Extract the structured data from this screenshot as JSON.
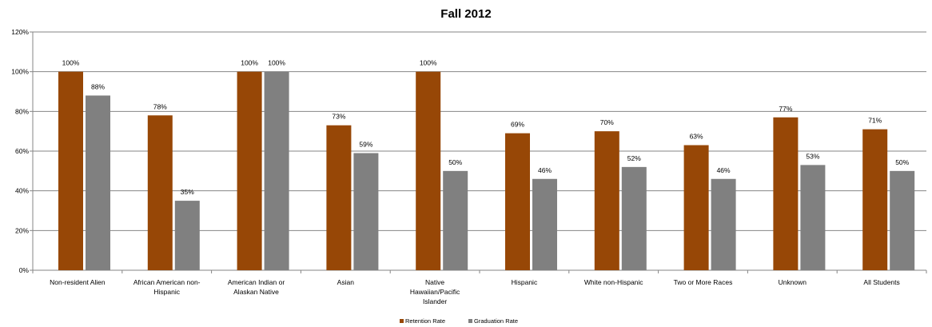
{
  "chart_data": {
    "type": "bar",
    "title": "Fall 2012",
    "categories": [
      [
        "Non-resident  Alien"
      ],
      [
        "African American non-",
        "Hispanic"
      ],
      [
        "American Indian or",
        "Alaskan Native"
      ],
      [
        "Asian"
      ],
      [
        "Native",
        "Hawaiian/Pacific",
        "Islander"
      ],
      [
        "Hispanic"
      ],
      [
        "White non-Hispanic"
      ],
      [
        "Two or More Races"
      ],
      [
        "Unknown"
      ],
      [
        "All Students"
      ]
    ],
    "series": [
      {
        "name": "Retention Rate",
        "color": "#974706",
        "values": [
          100,
          78,
          100,
          73,
          100,
          69,
          70,
          63,
          77,
          71
        ],
        "labels": [
          "100%",
          "78%",
          "100%",
          "73%",
          "100%",
          "69%",
          "70%",
          "63%",
          "77%",
          "71%"
        ]
      },
      {
        "name": "Graduation Rate",
        "color": "#808080",
        "values": [
          88,
          35,
          100,
          59,
          50,
          46,
          52,
          46,
          53,
          50
        ],
        "labels": [
          "88%",
          "35%",
          "100%",
          "59%",
          "50%",
          "46%",
          "52%",
          "46%",
          "53%",
          "50%"
        ]
      }
    ],
    "yticks": [
      "0%",
      "20%",
      "40%",
      "60%",
      "80%",
      "100%",
      "120%"
    ],
    "ylim": [
      0,
      120
    ],
    "grid": true,
    "legend_position": "bottom",
    "gridline_color": "#868686"
  }
}
